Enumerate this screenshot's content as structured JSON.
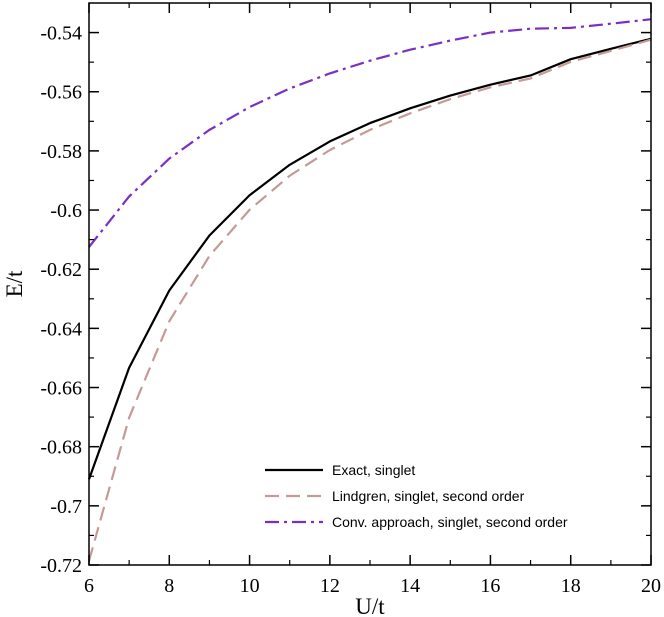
{
  "chart_data": {
    "type": "line",
    "xlabel": "U/t",
    "ylabel": "E/t",
    "xlim": [
      6,
      20
    ],
    "ylim": [
      -0.72,
      -0.53
    ],
    "x_ticks": [
      6,
      8,
      10,
      12,
      14,
      16,
      18,
      20
    ],
    "x_tick_labels": [
      "6",
      "8",
      "10",
      "12",
      "14",
      "16",
      "18",
      "20"
    ],
    "y_ticks": [
      -0.72,
      -0.7,
      -0.68,
      -0.66,
      -0.64,
      -0.62,
      -0.6,
      -0.58,
      -0.56,
      -0.54
    ],
    "y_tick_labels": [
      "-0.72",
      "-0.7",
      "-0.68",
      "-0.66",
      "-0.64",
      "-0.62",
      "-0.6",
      "-0.58",
      "-0.56",
      "-0.54"
    ],
    "grid": false,
    "legend_position": "bottom-right",
    "series": [
      {
        "name": "Exact, singlet",
        "color": "#000000",
        "style": "solid",
        "x": [
          6,
          7,
          8,
          9,
          10,
          11,
          12,
          13,
          14,
          15,
          16,
          17,
          18,
          19,
          20
        ],
        "y": [
          -0.691,
          -0.6533,
          -0.6272,
          -0.6086,
          -0.595,
          -0.5847,
          -0.5768,
          -0.5706,
          -0.5656,
          -0.5613,
          -0.5576,
          -0.5545,
          -0.549,
          -0.5455,
          -0.5421
        ]
      },
      {
        "name": "Lindgren, singlet, second order",
        "color": "#c49a96",
        "style": "dashed",
        "x": [
          6,
          7,
          8,
          9,
          10,
          11,
          12,
          13,
          14,
          15,
          16,
          17,
          18,
          19,
          20
        ],
        "y": [
          -0.7186,
          -0.6702,
          -0.6376,
          -0.6155,
          -0.5999,
          -0.5884,
          -0.5797,
          -0.5729,
          -0.5673,
          -0.5625,
          -0.5585,
          -0.5555,
          -0.5499,
          -0.5462,
          -0.5424
        ]
      },
      {
        "name": "Conv. approach, singlet, second order",
        "color": "#7b2fc2",
        "style": "dashdot",
        "x": [
          6,
          7,
          8,
          9,
          10,
          11,
          12,
          13,
          14,
          15,
          16,
          17,
          18,
          19,
          20
        ],
        "y": [
          -0.6125,
          -0.5954,
          -0.5826,
          -0.5729,
          -0.5652,
          -0.5589,
          -0.5538,
          -0.5495,
          -0.5458,
          -0.5427,
          -0.54,
          -0.5387,
          -0.5384,
          -0.537,
          -0.5355
        ]
      }
    ]
  }
}
